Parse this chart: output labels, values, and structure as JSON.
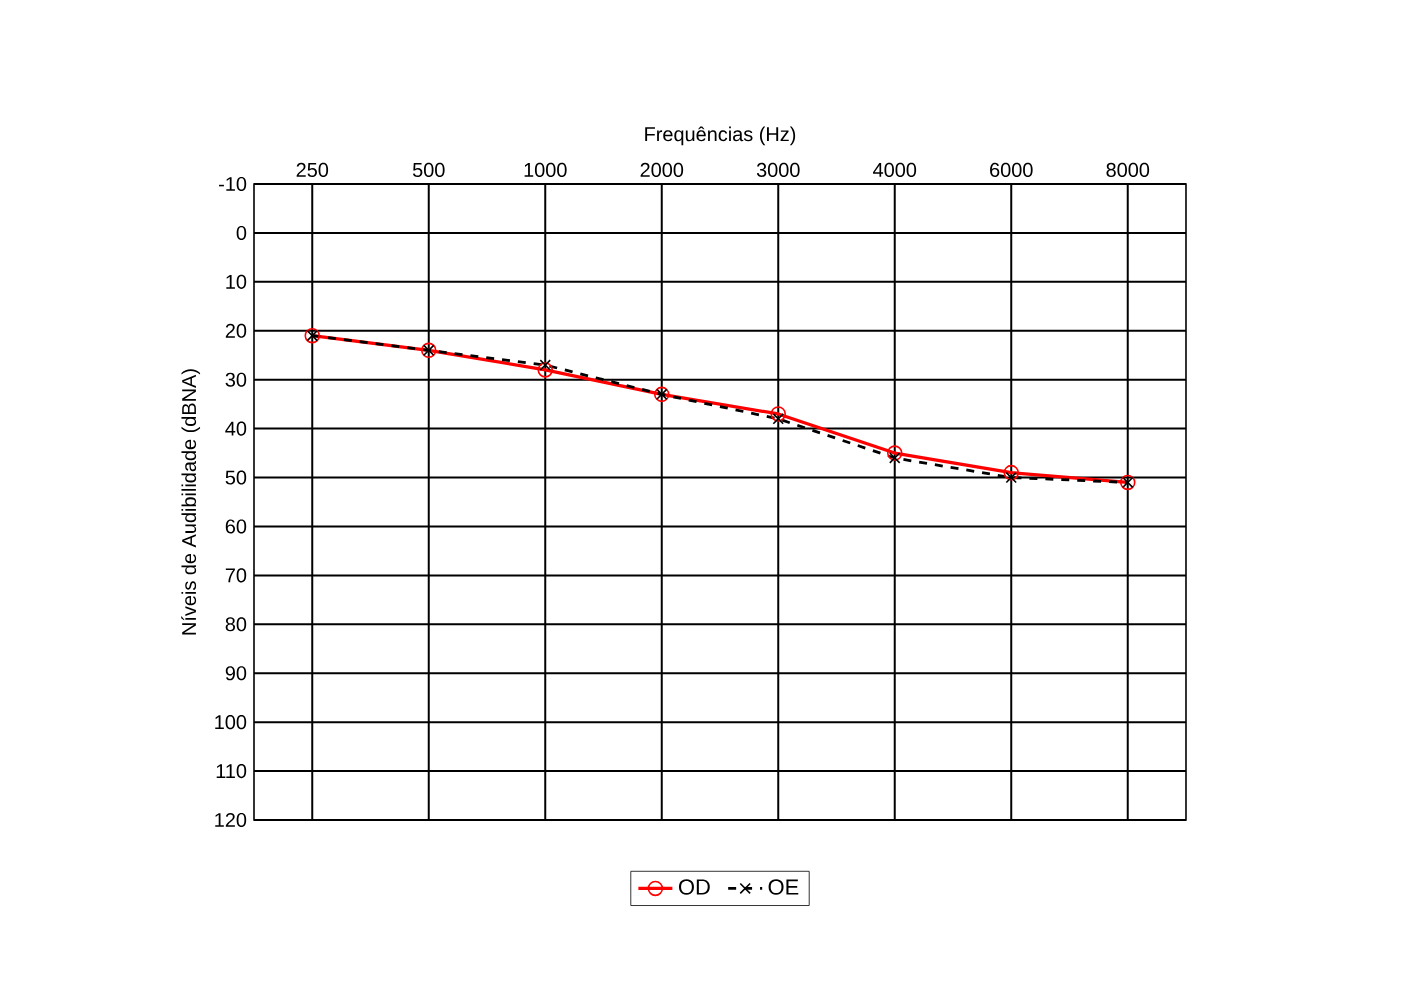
{
  "chart_data": {
    "type": "line",
    "xlabel": "Frequências (Hz)",
    "ylabel": "Níveis de Audibilidade (dBNA)",
    "categories": [
      "250",
      "500",
      "1000",
      "2000",
      "3000",
      "4000",
      "6000",
      "8000"
    ],
    "series": [
      {
        "name": "OD",
        "color": "#ff0000",
        "marker": "circle",
        "line_style": "solid",
        "values": [
          21,
          24,
          28,
          33,
          37,
          45,
          49,
          51
        ]
      },
      {
        "name": "OE",
        "color": "#000000",
        "marker": "cross",
        "line_style": "dashed",
        "values": [
          21,
          24,
          27,
          33,
          38,
          46,
          50,
          51
        ]
      }
    ],
    "ylim": [
      120,
      -10
    ],
    "yticks": [
      -10,
      0,
      10,
      20,
      30,
      40,
      50,
      60,
      70,
      80,
      90,
      100,
      110,
      120
    ],
    "grid": true,
    "legend": "bottom"
  }
}
